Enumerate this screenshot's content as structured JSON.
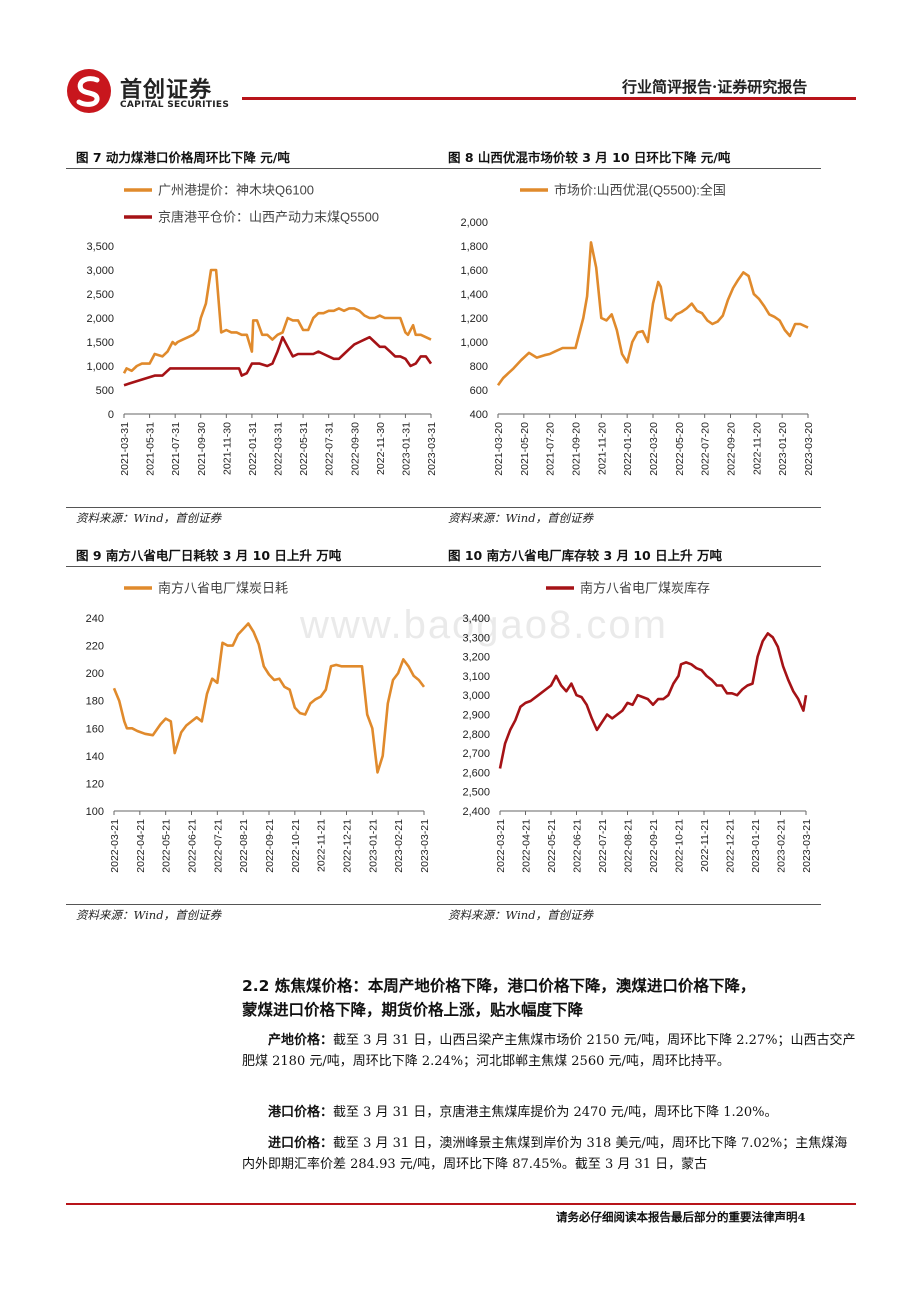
{
  "header": {
    "logo_cn": "首创证券",
    "logo_en": "CAPITAL SECURITIES",
    "report_type": "行业简评报告·证券研究报告"
  },
  "watermark": "www.baogao8.com",
  "figures": [
    {
      "title": "图 7 动力煤港口价格周环比下降 元/吨",
      "source": "资料来源：Wind，首创证券",
      "chart_data": {
        "type": "line",
        "y_ticks": [
          "3,500",
          "3,000",
          "2,500",
          "2,000",
          "1,500",
          "1,000",
          "500",
          "0"
        ],
        "ylim": [
          0,
          3500
        ],
        "x_ticks": [
          "2021-03-31",
          "2021-05-31",
          "2021-07-31",
          "2021-09-30",
          "2021-11-30",
          "2022-01-31",
          "2022-03-31",
          "2022-05-31",
          "2022-07-31",
          "2022-09-30",
          "2022-11-30",
          "2023-01-31",
          "2023-03-31"
        ],
        "series": [
          {
            "name": "广州港提价：神木块Q6100",
            "color": "#e08a2c",
            "x": [
              0,
              0.1,
              0.3,
              0.5,
              0.7,
              1.0,
              1.2,
              1.5,
              1.7,
              1.9,
              2.0,
              2.1,
              2.3,
              2.5,
              2.7,
              2.9,
              3.0,
              3.2,
              3.4,
              3.6,
              3.8,
              4.0,
              4.2,
              4.4,
              4.6,
              4.8,
              5.0,
              5.05,
              5.2,
              5.4,
              5.6,
              5.8,
              6.0,
              6.2,
              6.4,
              6.6,
              6.8,
              7.0,
              7.2,
              7.4,
              7.6,
              7.8,
              8.0,
              8.2,
              8.4,
              8.6,
              8.8,
              9.0,
              9.2,
              9.4,
              9.6,
              9.8,
              10.0,
              10.2,
              10.5,
              10.8,
              11.0,
              11.1,
              11.3,
              11.4,
              11.6,
              11.8,
              12.0
            ],
            "values": [
              850,
              950,
              900,
              1000,
              1050,
              1050,
              1250,
              1200,
              1300,
              1500,
              1450,
              1500,
              1550,
              1600,
              1650,
              1750,
              2000,
              2300,
              3000,
              3000,
              1700,
              1750,
              1700,
              1700,
              1650,
              1650,
              1300,
              1950,
              1950,
              1650,
              1650,
              1550,
              1650,
              1700,
              2000,
              1950,
              1950,
              1750,
              1750,
              2000,
              2100,
              2100,
              2150,
              2150,
              2200,
              2150,
              2200,
              2200,
              2150,
              2050,
              2000,
              2000,
              2050,
              2000,
              2000,
              2000,
              1700,
              1650,
              1850,
              1650,
              1650,
              1600,
              1550
            ]
          },
          {
            "name": "京唐港平仓价：山西产动力末煤Q5500",
            "color": "#a51216",
            "x": [
              0,
              0.3,
              0.6,
              0.9,
              1.2,
              1.5,
              1.7,
              1.8,
              2.0,
              2.5,
              3.0,
              3.5,
              4.0,
              4.5,
              4.6,
              4.8,
              5.0,
              5.3,
              5.6,
              5.8,
              6.0,
              6.2,
              6.4,
              6.6,
              6.8,
              7.0,
              7.2,
              7.4,
              7.6,
              7.8,
              8.0,
              8.2,
              8.4,
              8.6,
              8.8,
              9.0,
              9.2,
              9.4,
              9.6,
              9.8,
              10.0,
              10.2,
              10.4,
              10.6,
              10.8,
              11.0,
              11.2,
              11.4,
              11.6,
              11.8,
              12.0
            ],
            "values": [
              600,
              650,
              700,
              750,
              800,
              800,
              900,
              950,
              950,
              950,
              950,
              950,
              950,
              950,
              800,
              850,
              1050,
              1050,
              1000,
              1050,
              1300,
              1600,
              1400,
              1200,
              1250,
              1250,
              1250,
              1250,
              1300,
              1250,
              1200,
              1150,
              1150,
              1250,
              1350,
              1450,
              1500,
              1550,
              1600,
              1500,
              1400,
              1400,
              1300,
              1200,
              1200,
              1150,
              1000,
              1050,
              1200,
              1200,
              1050
            ]
          }
        ]
      }
    },
    {
      "title": "图 8 山西优混市场价较 3 月 10 日环比下降 元/吨",
      "source": "资料来源：Wind，首创证券",
      "chart_data": {
        "type": "line",
        "y_ticks": [
          "2,000",
          "1,800",
          "1,600",
          "1,400",
          "1,200",
          "1,000",
          "800",
          "600",
          "400"
        ],
        "ylim": [
          400,
          2000
        ],
        "x_ticks": [
          "2021-03-20",
          "2021-05-20",
          "2021-07-20",
          "2021-09-20",
          "2021-11-20",
          "2022-01-20",
          "2022-03-20",
          "2022-05-20",
          "2022-07-20",
          "2022-09-20",
          "2022-11-20",
          "2023-01-20",
          "2023-03-20"
        ],
        "series": [
          {
            "name": "市场价:山西优混(Q5500):全国",
            "color": "#e08a2c",
            "x": [
              0,
              0.2,
              0.4,
              0.6,
              0.9,
              1.2,
              1.5,
              1.8,
              2.0,
              2.2,
              2.5,
              2.8,
              3.0,
              3.3,
              3.45,
              3.6,
              3.8,
              4.0,
              4.2,
              4.4,
              4.6,
              4.8,
              5.0,
              5.2,
              5.4,
              5.6,
              5.8,
              6.0,
              6.2,
              6.3,
              6.5,
              6.7,
              6.9,
              7.1,
              7.3,
              7.5,
              7.7,
              7.9,
              8.1,
              8.3,
              8.5,
              8.7,
              8.9,
              9.1,
              9.3,
              9.5,
              9.7,
              9.9,
              10.1,
              10.3,
              10.5,
              10.7,
              10.9,
              11.1,
              11.3,
              11.5,
              11.7,
              12.0
            ],
            "values": [
              640,
              700,
              740,
              780,
              850,
              910,
              870,
              890,
              900,
              920,
              950,
              950,
              950,
              1200,
              1380,
              1830,
              1620,
              1200,
              1180,
              1230,
              1100,
              900,
              830,
              1000,
              1080,
              1090,
              1000,
              1320,
              1500,
              1460,
              1200,
              1180,
              1230,
              1250,
              1280,
              1320,
              1260,
              1240,
              1180,
              1150,
              1170,
              1220,
              1350,
              1450,
              1520,
              1580,
              1550,
              1400,
              1360,
              1300,
              1230,
              1210,
              1180,
              1100,
              1050,
              1150,
              1150,
              1120
            ]
          }
        ]
      }
    },
    {
      "title": "图 9 南方八省电厂日耗较 3 月 10 日上升 万吨",
      "source": "资料来源：Wind，首创证券",
      "chart_data": {
        "type": "line",
        "y_ticks": [
          "240",
          "220",
          "200",
          "180",
          "160",
          "140",
          "120",
          "100"
        ],
        "ylim": [
          100,
          240
        ],
        "x_ticks": [
          "2022-03-21",
          "2022-04-21",
          "2022-05-21",
          "2022-06-21",
          "2022-07-21",
          "2022-08-21",
          "2022-09-21",
          "2022-10-21",
          "2022-11-21",
          "2022-12-21",
          "2023-01-21",
          "2023-02-21",
          "2023-03-21"
        ],
        "series": [
          {
            "name": "南方八省电厂煤炭日耗",
            "color": "#e08a2c",
            "x": [
              0,
              0.2,
              0.4,
              0.5,
              0.7,
              0.9,
              1.2,
              1.5,
              1.8,
              2.0,
              2.2,
              2.35,
              2.6,
              2.8,
              3.0,
              3.2,
              3.4,
              3.6,
              3.8,
              4.0,
              4.2,
              4.4,
              4.6,
              4.8,
              5.0,
              5.2,
              5.4,
              5.6,
              5.8,
              6.0,
              6.2,
              6.4,
              6.6,
              6.8,
              7.0,
              7.2,
              7.4,
              7.6,
              7.8,
              8.0,
              8.2,
              8.4,
              8.6,
              8.8,
              9.0,
              9.2,
              9.4,
              9.6,
              9.8,
              10.0,
              10.2,
              10.4,
              10.6,
              10.8,
              11.0,
              11.2,
              11.4,
              11.6,
              11.8,
              12.0
            ],
            "values": [
              189,
              180,
              165,
              160,
              160,
              158,
              156,
              155,
              163,
              167,
              165,
              142,
              157,
              162,
              165,
              168,
              165,
              185,
              196,
              193,
              222,
              220,
              220,
              228,
              232,
              236,
              230,
              221,
              205,
              199,
              195,
              196,
              190,
              188,
              175,
              171,
              170,
              178,
              181,
              183,
              188,
              205,
              206,
              205,
              205,
              205,
              205,
              205,
              170,
              160,
              128,
              140,
              178,
              195,
              200,
              210,
              205,
              198,
              195,
              190
            ]
          }
        ]
      }
    },
    {
      "title": "图 10 南方八省电厂库存较 3 月 10 日上升 万吨",
      "source": "资料来源：Wind，首创证券",
      "chart_data": {
        "type": "line",
        "y_ticks": [
          "3,400",
          "3,300",
          "3,200",
          "3,100",
          "3,000",
          "2,900",
          "2,800",
          "2,700",
          "2,600",
          "2,500",
          "2,400"
        ],
        "ylim": [
          2400,
          3400
        ],
        "x_ticks": [
          "2022-03-21",
          "2022-04-21",
          "2022-05-21",
          "2022-06-21",
          "2022-07-21",
          "2022-08-21",
          "2022-09-21",
          "2022-10-21",
          "2022-11-21",
          "2022-12-21",
          "2023-01-21",
          "2023-02-21",
          "2023-03-21"
        ],
        "series": [
          {
            "name": "南方八省电厂煤炭库存",
            "color": "#a51216",
            "x": [
              0,
              0.2,
              0.4,
              0.6,
              0.8,
              1.0,
              1.2,
              1.5,
              1.8,
              2.0,
              2.2,
              2.4,
              2.6,
              2.8,
              3.0,
              3.2,
              3.4,
              3.6,
              3.8,
              4.0,
              4.2,
              4.4,
              4.6,
              4.8,
              5.0,
              5.2,
              5.4,
              5.6,
              5.8,
              6.0,
              6.2,
              6.4,
              6.6,
              6.8,
              7.0,
              7.1,
              7.3,
              7.5,
              7.7,
              7.9,
              8.1,
              8.3,
              8.5,
              8.7,
              8.9,
              9.1,
              9.3,
              9.5,
              9.7,
              9.9,
              10.1,
              10.3,
              10.5,
              10.7,
              10.9,
              11.1,
              11.3,
              11.5,
              11.7,
              11.9,
              12.0
            ],
            "values": [
              2620,
              2750,
              2820,
              2870,
              2940,
              2960,
              2970,
              3000,
              3030,
              3050,
              3100,
              3050,
              3020,
              3060,
              3000,
              2990,
              2950,
              2880,
              2820,
              2860,
              2900,
              2880,
              2900,
              2920,
              2960,
              2950,
              3000,
              2990,
              2980,
              2950,
              2980,
              2980,
              3000,
              3060,
              3100,
              3160,
              3170,
              3160,
              3140,
              3130,
              3100,
              3080,
              3050,
              3050,
              3010,
              3010,
              3000,
              3030,
              3050,
              3060,
              3200,
              3280,
              3320,
              3300,
              3250,
              3150,
              3080,
              3020,
              2980,
              2920,
              3000
            ]
          }
        ]
      }
    }
  ],
  "section": {
    "title_line1": "2.2 炼焦煤价格：本周产地价格下降，港口价格下降，澳煤进口价格下降，",
    "title_line2": "蒙煤进口价格下降，期货价格上涨，贴水幅度下降",
    "p1_label": "产地价格：",
    "p1_text": "截至 3 月 31 日，山西吕梁产主焦煤市场价 2150 元/吨，周环比下降 2.27%；山西古交产肥煤 2180 元/吨，周环比下降 2.24%；河北邯郸主焦煤 2560 元/吨，周环比持平。",
    "p2_label": "港口价格：",
    "p2_text": "截至 3 月 31 日，京唐港主焦煤库提价为 2470 元/吨，周环比下降 1.20%。",
    "p3_label": "进口价格：",
    "p3_text": "截至 3 月 31 日，澳洲峰景主焦煤到岸价为 318 美元/吨，周环比下降 7.02%；主焦煤海内外即期汇率价差 284.93 元/吨，周环比下降 87.45%。截至 3 月 31 日，蒙古"
  },
  "footer": {
    "notice": "请务必仔细阅读本报告最后部分的重要法律声明",
    "page_number": "4"
  }
}
